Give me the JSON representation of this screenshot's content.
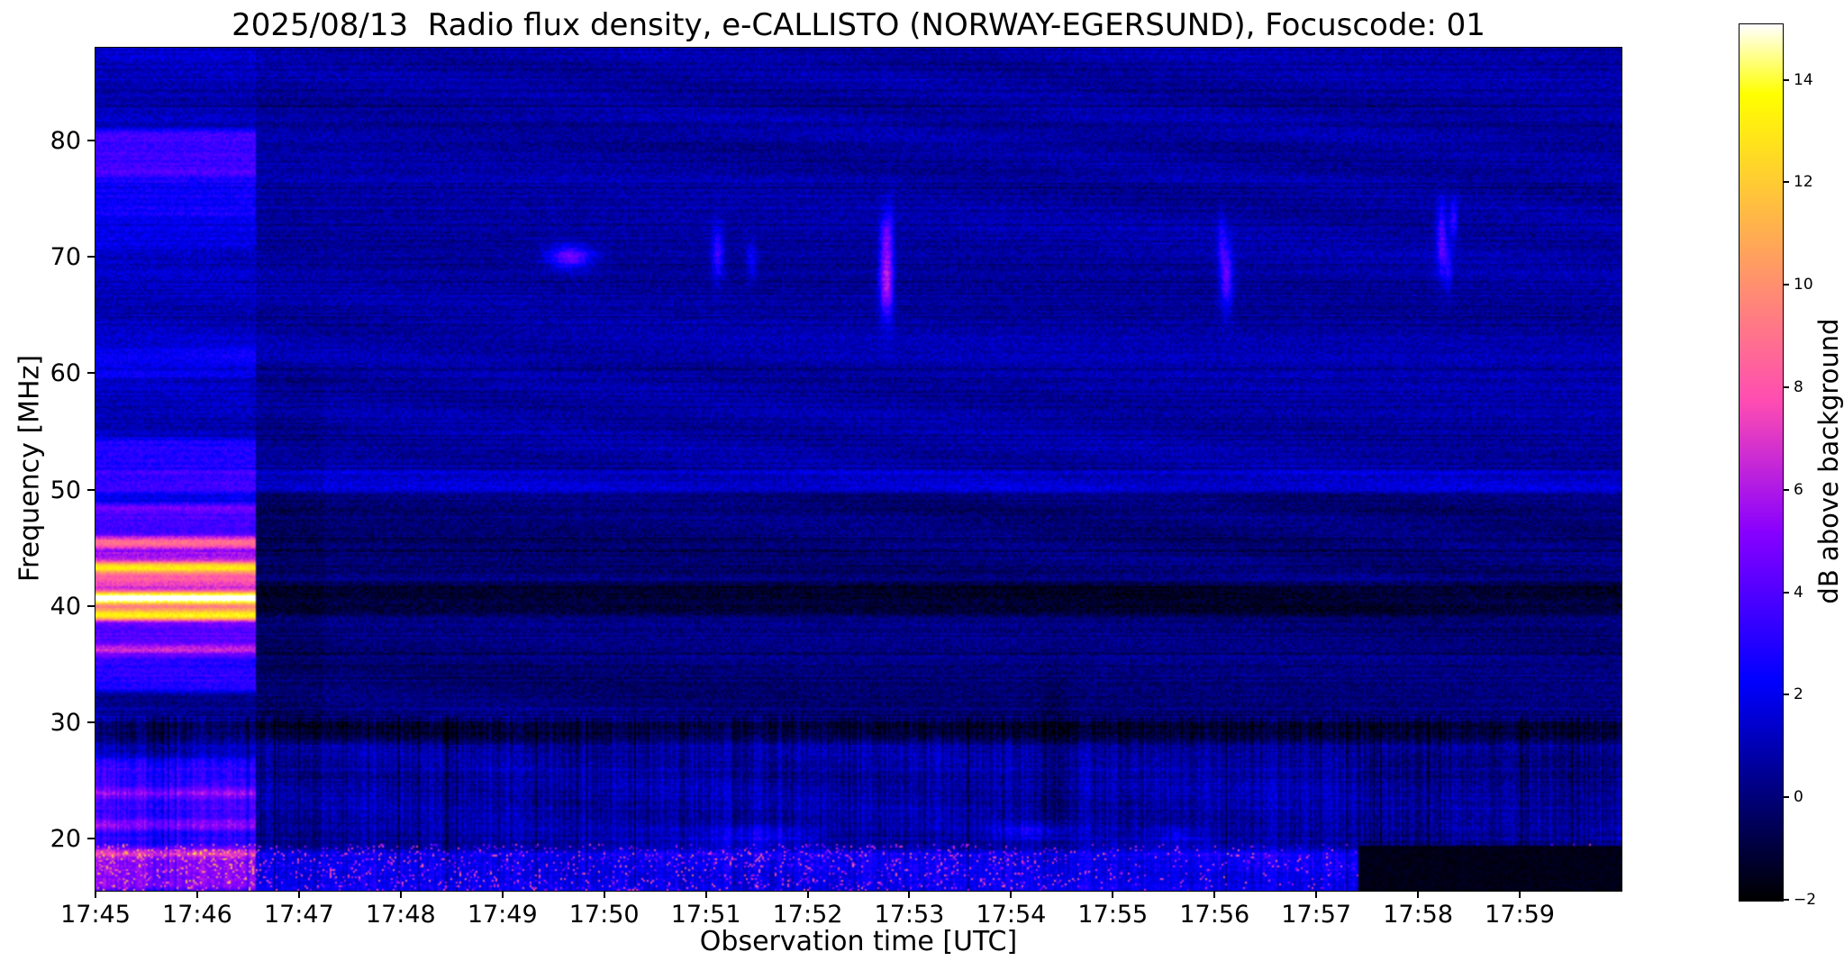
{
  "chart_data": {
    "type": "heatmap",
    "title": "2025/08/13  Radio flux density, e-CALLISTO (NORWAY-EGERSUND), Focuscode: 01",
    "xlabel": "Observation time [UTC]",
    "ylabel": "Frequency [MHz]",
    "x_ticks": [
      "17:45",
      "17:46",
      "17:47",
      "17:48",
      "17:49",
      "17:50",
      "17:51",
      "17:52",
      "17:53",
      "17:54",
      "17:55",
      "17:56",
      "17:57",
      "17:58",
      "17:59"
    ],
    "x_range_seconds": [
      0,
      900
    ],
    "x_start": "17:45:00",
    "x_end": "18:00:00",
    "y_ticks": [
      20,
      30,
      40,
      50,
      60,
      70,
      80
    ],
    "y_range": [
      15.5,
      88
    ],
    "grid": false,
    "colorbar": {
      "label": "dB above background",
      "ticks": [
        -2,
        0,
        2,
        4,
        6,
        8,
        10,
        12,
        14
      ],
      "range": [
        -2,
        15.1
      ],
      "colormap": "gnuplot2"
    },
    "annotations": [
      "Bright broadband interference segment from 17:45:00 to about 17:46:35 with strong horizontal RFI bands, peaking pink/salmon near 40 MHz",
      "Persistent narrow brighter line near 50.8 MHz across the whole interval",
      "Dark bands near 40-41.5 MHz and near 29 MHz after 17:46:35",
      "Short narrowband bursts near 66-73 MHz around 17:49:40, 17:51:05, 17:52:45, 17:56:05 and 17:58:15",
      "Vertical striping and bright/pink speckles below ~28 MHz; region below ~19.4 MHz turns black after about 17:57:25"
    ],
    "render": {
      "base": 0.55,
      "noise": 1.3,
      "row_noise": 0.7,
      "stripe_noise": 1.3,
      "stripe_f_max": 30.5,
      "wave_amp": 0.22,
      "dark_row_thr": 0.95,
      "dark_row_amp": -0.5,
      "bands": [
        {
          "f0": 50.1,
          "f1": 51.3,
          "amp": 0.85
        },
        {
          "f0": 39.5,
          "f1": 41.5,
          "amp": -1.3
        },
        {
          "f0": 28.5,
          "f1": 29.6,
          "amp": -1.1
        },
        {
          "f0": 29.6,
          "f1": 49.4,
          "amp": -0.5
        },
        {
          "f0": 19.0,
          "f1": 28.4,
          "amp": 0.3
        },
        {
          "f0": 15.5,
          "f1": 18.6,
          "amp": 1.6
        },
        {
          "f0": 52.0,
          "f1": 88.0,
          "amp": 0.15
        },
        {
          "f0": 19.4,
          "f1": 27.0,
          "amp": -0.45,
          "t0": 745
        }
      ],
      "left_segment": {
        "t_end": 95,
        "boost": 0.45,
        "after_gap_dim": -0.3,
        "bands": [
          {
            "f0": 77.5,
            "f1": 80.5,
            "amp": 2.3
          },
          {
            "f0": 74.0,
            "f1": 77.0,
            "amp": 1.3
          },
          {
            "f0": 71.0,
            "f1": 73.5,
            "amp": 0.9
          },
          {
            "f0": 60.0,
            "f1": 61.8,
            "amp": 1.0
          },
          {
            "f0": 48.5,
            "f1": 54.0,
            "amp": 1.6
          },
          {
            "f0": 45.5,
            "f1": 48.3,
            "amp": 3.4
          },
          {
            "f0": 43.3,
            "f1": 45.5,
            "amp": 5.5
          },
          {
            "f0": 40.7,
            "f1": 43.3,
            "amp": 7.5
          },
          {
            "f0": 39.2,
            "f1": 40.7,
            "amp": 9.8
          },
          {
            "f0": 36.2,
            "f1": 39.2,
            "amp": 3.8
          },
          {
            "f0": 33.0,
            "f1": 36.2,
            "amp": 2.6
          },
          {
            "f0": 24.0,
            "f1": 26.5,
            "amp": 1.9
          },
          {
            "f0": 21.2,
            "f1": 23.8,
            "amp": 2.3
          },
          {
            "f0": 18.8,
            "f1": 21.2,
            "amp": 1.9
          },
          {
            "f0": 16.0,
            "f1": 18.8,
            "amp": 2.4
          }
        ]
      },
      "features": [
        {
          "t": 280,
          "f": 70.0,
          "st": 9.0,
          "sf": 0.7,
          "amp": 4.0
        },
        {
          "t": 367,
          "f": 70.3,
          "st": 2.5,
          "sf": 1.6,
          "amp": 3.0
        },
        {
          "t": 387,
          "f": 69.8,
          "st": 2.0,
          "sf": 1.2,
          "amp": 1.8
        },
        {
          "t": 466,
          "f": 67.8,
          "st": 2.6,
          "sf": 2.0,
          "amp": 5.5
        },
        {
          "t": 466,
          "f": 71.8,
          "st": 2.2,
          "sf": 1.4,
          "amp": 3.2
        },
        {
          "t": 469,
          "f": 70.0,
          "st": 1.6,
          "sf": 4.0,
          "amp": 1.5
        },
        {
          "t": 667,
          "f": 68.3,
          "st": 2.6,
          "sf": 2.0,
          "amp": 4.0
        },
        {
          "t": 664,
          "f": 71.5,
          "st": 1.6,
          "sf": 1.5,
          "amp": 1.8
        },
        {
          "t": 794,
          "f": 71.5,
          "st": 2.2,
          "sf": 2.2,
          "amp": 3.5
        },
        {
          "t": 801,
          "f": 73.2,
          "st": 1.6,
          "sf": 1.2,
          "amp": 2.8
        },
        {
          "t": 798,
          "f": 68.8,
          "st": 1.6,
          "sf": 1.5,
          "amp": 2.0
        },
        {
          "t": 393,
          "f": 20.3,
          "st": 22.0,
          "sf": 0.6,
          "amp": 1.6
        },
        {
          "t": 552,
          "f": 20.5,
          "st": 14.0,
          "sf": 0.55,
          "amp": 1.4
        },
        {
          "t": 640,
          "f": 20.2,
          "st": 10.0,
          "sf": 0.5,
          "amp": 1.1
        },
        {
          "t": 566,
          "f": 24.0,
          "st": 6.0,
          "sf": 6.0,
          "amp": -1.2
        }
      ],
      "speckle": {
        "f_max": 19.6,
        "t_bright_end": 570,
        "thr_bright": 0.9,
        "thr_late": 0.952,
        "amp_min": 2.2,
        "amp_var": 4.5
      },
      "dark_patch": {
        "t0": 745,
        "f1": 19.4,
        "value": -1.6
      }
    }
  }
}
